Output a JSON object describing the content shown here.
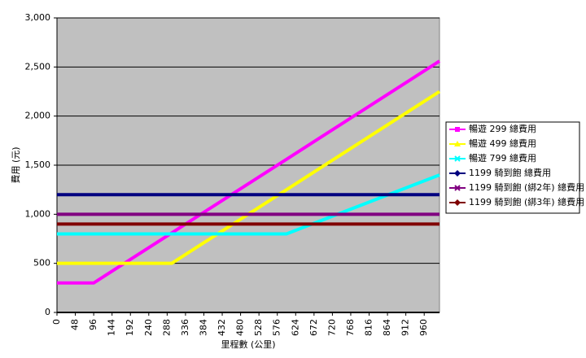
{
  "chart_data": {
    "type": "line",
    "xlabel": "里程數 (公里)",
    "ylabel": "費用 (元)",
    "x": [
      0,
      96,
      300,
      600,
      1000
    ],
    "xlim": [
      0,
      1000
    ],
    "xticks": [
      0,
      48,
      96,
      144,
      192,
      240,
      288,
      336,
      384,
      432,
      480,
      528,
      576,
      624,
      672,
      720,
      768,
      816,
      864,
      912,
      960
    ],
    "ylim": [
      0,
      3000
    ],
    "yticks": [
      0,
      500,
      {
        "value": 1000,
        "label": "1,000"
      },
      {
        "value": 1500,
        "label": "1,500"
      },
      {
        "value": 2000,
        "label": "2,000"
      },
      {
        "value": 2500,
        "label": "2,500"
      },
      {
        "value": 3000,
        "label": "3,000"
      }
    ],
    "grid": true,
    "legend": "right",
    "series": [
      {
        "name": "暢遊 299 總費用",
        "color": "#ff00ff",
        "marker": "square",
        "values": [
          300,
          300,
          810,
          1560,
          2560
        ]
      },
      {
        "name": "暢遊 499 總費用",
        "color": "#ffff00",
        "marker": "triangle",
        "values": [
          500,
          500,
          500,
          1250,
          2250
        ]
      },
      {
        "name": "暢遊 799 總費用",
        "color": "#00ffff",
        "marker": "x",
        "values": [
          800,
          800,
          800,
          800,
          1400
        ]
      },
      {
        "name": "1199 騎到飽 總費用",
        "color": "#000080",
        "marker": "diamond",
        "values": [
          1200,
          1200,
          1200,
          1200,
          1200
        ]
      },
      {
        "name": "1199 騎到飽 (綁2年) 總費用",
        "color": "#800080",
        "marker": "x",
        "values": [
          1000,
          1000,
          1000,
          1000,
          1000
        ]
      },
      {
        "name": "1199 騎到飽 (綁3年) 總費用",
        "color": "#800000",
        "marker": "diamond",
        "values": [
          900,
          900,
          900,
          900,
          900
        ]
      }
    ]
  }
}
